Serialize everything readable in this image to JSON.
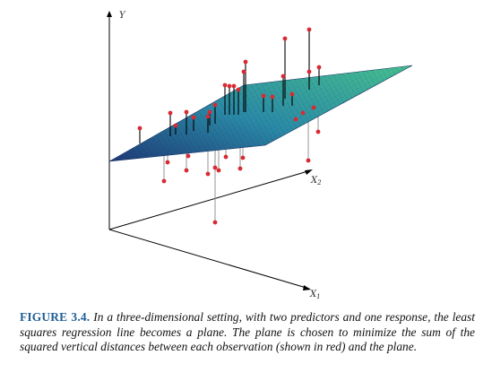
{
  "figure": {
    "axis_y_label": "Y",
    "axis_x1_label": "X",
    "axis_x1_sub": "1",
    "axis_x2_label": "X",
    "axis_x2_sub": "2",
    "plane_color_dark": "#1e3a78",
    "plane_color_light": "#3fb995",
    "point_color": "#d72a33",
    "residual_above_color": "#8a8a8a",
    "residual_below_color": "#000000"
  },
  "caption": {
    "label": "FIGURE 3.4.",
    "text": " In a three-dimensional setting, with two predictors and one response, the least squares regression line becomes a plane. The plane is chosen to minimize the sum of the squared vertical distances between each observation (shown in red) and the plane."
  }
}
